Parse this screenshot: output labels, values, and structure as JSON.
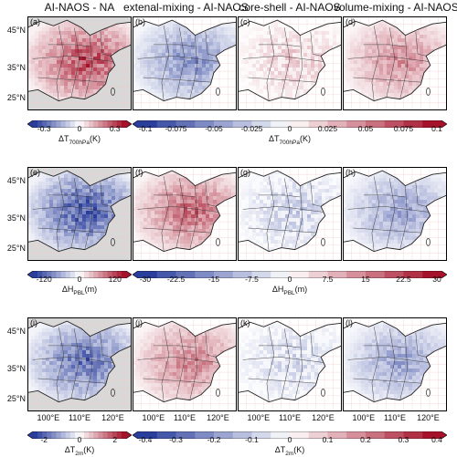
{
  "column_titles": [
    "AI-NAOS - NA",
    "extenal-mixing - AI-NAOS",
    "core-shell - AI-NAOS",
    "volume-mixing - AI-NAOS"
  ],
  "panel_labels": [
    [
      "(a)",
      "(b)",
      "(c)",
      "(d)"
    ],
    [
      "(e)",
      "(f)",
      "(g)",
      "(h)"
    ],
    [
      "(i)",
      "(j)",
      "(k)",
      "(l)"
    ]
  ],
  "lat_labels": [
    "45°N",
    "35°N",
    "25°N"
  ],
  "lon_labels": [
    "100°E",
    "110°E",
    "120°E"
  ],
  "rows": [
    {
      "left_colorbar": {
        "ticks": [
          "-0.3",
          "0",
          "0.3"
        ],
        "label_main": "ΔT",
        "label_sub": "700hPa",
        "label_unit": "(K)"
      },
      "right_colorbar": {
        "ticks": [
          "-0.1",
          "-0.075",
          "-0.05",
          "-0.025",
          "0",
          "0.025",
          "0.05",
          "0.075",
          "0.1"
        ],
        "label_main": "ΔT",
        "label_sub": "700hPa",
        "label_unit": "(K)"
      },
      "panels": [
        {
          "sign": 1,
          "strength": 0.75
        },
        {
          "sign": -1,
          "strength": 0.55
        },
        {
          "sign": 1,
          "strength": 0.25
        },
        {
          "sign": 1,
          "strength": 0.45
        }
      ]
    },
    {
      "left_colorbar": {
        "ticks": [
          "-120",
          "0",
          "120"
        ],
        "label_main": "ΔH",
        "label_sub": "PBL",
        "label_unit": "(m)"
      },
      "right_colorbar": {
        "ticks": [
          "-30",
          "-22.5",
          "-15",
          "-7.5",
          "0",
          "7.5",
          "15",
          "22.5",
          "30"
        ],
        "label_main": "ΔH",
        "label_sub": "PBL",
        "label_unit": "(m)"
      },
      "panels": [
        {
          "sign": -1,
          "strength": 0.85
        },
        {
          "sign": 1,
          "strength": 0.6
        },
        {
          "sign": -1,
          "strength": 0.3
        },
        {
          "sign": -1,
          "strength": 0.45
        }
      ]
    },
    {
      "left_colorbar": {
        "ticks": [
          "-2",
          "0",
          "2"
        ],
        "label_main": "ΔT",
        "label_sub": "2m",
        "label_unit": "(K)"
      },
      "right_colorbar": {
        "ticks": [
          "-0.4",
          "-0.3",
          "-0.2",
          "-0.1",
          "0",
          "0.1",
          "0.2",
          "0.3",
          "0.4"
        ],
        "label_main": "ΔT",
        "label_sub": "2m",
        "label_unit": "(K)"
      },
      "panels": [
        {
          "sign": -1,
          "strength": 0.7
        },
        {
          "sign": 1,
          "strength": 0.5
        },
        {
          "sign": -1,
          "strength": 0.25
        },
        {
          "sign": -1,
          "strength": 0.45
        }
      ]
    }
  ],
  "colors": {
    "deep_blue": "#2a3e9c",
    "deep_red": "#a5122a",
    "land_gray": "#d8d8d8",
    "grid_pink": "#f3c9c9"
  }
}
